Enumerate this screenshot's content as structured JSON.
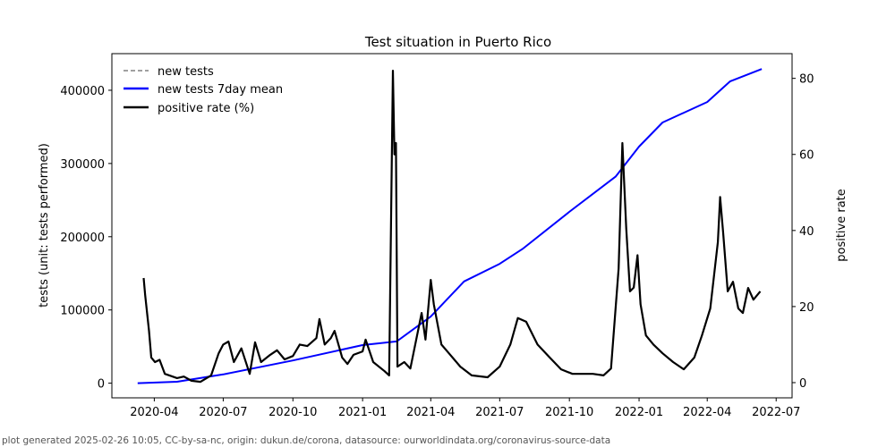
{
  "chart_data": {
    "type": "line",
    "title": "Test situation in Puerto Rico",
    "ylabel": "tests (unit: tests performed)",
    "y2label": "positive rate",
    "ylim": [
      -20000,
      450000
    ],
    "y2lim": [
      -4.0,
      86.5
    ],
    "xlim": [
      "2020-02-05",
      "2022-07-22"
    ],
    "yticks": [
      0,
      100000,
      200000,
      300000,
      400000
    ],
    "y2ticks": [
      0,
      20,
      40,
      60,
      80
    ],
    "xticks": [
      "2020-04",
      "2020-07",
      "2020-10",
      "2021-01",
      "2021-04",
      "2021-07",
      "2021-10",
      "2022-01",
      "2022-04",
      "2022-07"
    ],
    "legend": {
      "placement": "top-left",
      "entries": [
        "new tests",
        "new tests 7day mean",
        "positive rate (%)"
      ]
    },
    "colors": {
      "new_tests": "#808080",
      "mean": "#0000ff",
      "positive": "#000000"
    },
    "series": [
      {
        "name": "new tests 7day mean",
        "axis": "left",
        "points": [
          [
            "2020-03-10",
            0
          ],
          [
            "2020-05-01",
            2000
          ],
          [
            "2020-07-01",
            12000
          ],
          [
            "2020-10-01",
            31000
          ],
          [
            "2021-01-01",
            52000
          ],
          [
            "2021-02-15",
            57000
          ],
          [
            "2021-04-01",
            91000
          ],
          [
            "2021-05-15",
            139000
          ],
          [
            "2021-07-01",
            163000
          ],
          [
            "2021-08-01",
            184000
          ],
          [
            "2021-10-01",
            234000
          ],
          [
            "2021-12-01",
            282000
          ],
          [
            "2022-01-01",
            323000
          ],
          [
            "2022-02-01",
            356000
          ],
          [
            "2022-04-01",
            384000
          ],
          [
            "2022-05-01",
            412000
          ],
          [
            "2022-06-12",
            429000
          ]
        ]
      },
      {
        "name": "positive rate (%)",
        "axis": "right",
        "points": [
          [
            "2020-03-18",
            27.5
          ],
          [
            "2020-03-20",
            23
          ],
          [
            "2020-03-25",
            13.6
          ],
          [
            "2020-03-28",
            6.6
          ],
          [
            "2020-04-02",
            5.4
          ],
          [
            "2020-04-08",
            6
          ],
          [
            "2020-04-15",
            2.3
          ],
          [
            "2020-05-01",
            1.2
          ],
          [
            "2020-05-10",
            1.6
          ],
          [
            "2020-05-20",
            0.5
          ],
          [
            "2020-06-01",
            0.2
          ],
          [
            "2020-06-15",
            1.9
          ],
          [
            "2020-06-25",
            7.7
          ],
          [
            "2020-07-01",
            10
          ],
          [
            "2020-07-08",
            10.8
          ],
          [
            "2020-07-15",
            5.4
          ],
          [
            "2020-07-25",
            9
          ],
          [
            "2020-08-05",
            2.3
          ],
          [
            "2020-08-12",
            10.6
          ],
          [
            "2020-08-20",
            5.4
          ],
          [
            "2020-09-01",
            7.3
          ],
          [
            "2020-09-10",
            8.5
          ],
          [
            "2020-09-20",
            6.1
          ],
          [
            "2020-10-01",
            7
          ],
          [
            "2020-10-10",
            10
          ],
          [
            "2020-10-20",
            9.6
          ],
          [
            "2020-11-01",
            11.7
          ],
          [
            "2020-11-05",
            16.7
          ],
          [
            "2020-11-12",
            10
          ],
          [
            "2020-11-20",
            11.7
          ],
          [
            "2020-11-25",
            13.6
          ],
          [
            "2020-12-05",
            6.6
          ],
          [
            "2020-12-12",
            4.9
          ],
          [
            "2020-12-20",
            7.3
          ],
          [
            "2021-01-01",
            8.2
          ],
          [
            "2021-01-05",
            11.3
          ],
          [
            "2021-01-15",
            5.4
          ],
          [
            "2021-01-30",
            3
          ],
          [
            "2021-02-05",
            1.9
          ],
          [
            "2021-02-10",
            82
          ],
          [
            "2021-02-12",
            60
          ],
          [
            "2021-02-14",
            63
          ],
          [
            "2021-02-16",
            4.2
          ],
          [
            "2021-02-25",
            5.4
          ],
          [
            "2021-03-05",
            3.7
          ],
          [
            "2021-03-20",
            18.3
          ],
          [
            "2021-03-25",
            11.3
          ],
          [
            "2021-04-01",
            27
          ],
          [
            "2021-04-05",
            20.6
          ],
          [
            "2021-04-15",
            10
          ],
          [
            "2021-04-25",
            7.7
          ],
          [
            "2021-05-10",
            4.2
          ],
          [
            "2021-05-25",
            1.9
          ],
          [
            "2021-06-15",
            1.4
          ],
          [
            "2021-07-01",
            4.2
          ],
          [
            "2021-07-15",
            10
          ],
          [
            "2021-07-25",
            17
          ],
          [
            "2021-08-05",
            16
          ],
          [
            "2021-08-20",
            10
          ],
          [
            "2021-09-05",
            6.6
          ],
          [
            "2021-09-20",
            3.5
          ],
          [
            "2021-10-05",
            2.3
          ],
          [
            "2021-11-01",
            2.3
          ],
          [
            "2021-11-15",
            1.9
          ],
          [
            "2021-11-25",
            3.7
          ],
          [
            "2021-12-05",
            30
          ],
          [
            "2021-12-10",
            63
          ],
          [
            "2021-12-15",
            40.6
          ],
          [
            "2021-12-20",
            24
          ],
          [
            "2021-12-25",
            25
          ],
          [
            "2021-12-30",
            33.5
          ],
          [
            "2022-01-03",
            20.6
          ],
          [
            "2022-01-10",
            12.4
          ],
          [
            "2022-01-20",
            10
          ],
          [
            "2022-02-01",
            7.7
          ],
          [
            "2022-02-15",
            5.4
          ],
          [
            "2022-03-01",
            3.5
          ],
          [
            "2022-03-15",
            6.6
          ],
          [
            "2022-03-25",
            12.4
          ],
          [
            "2022-04-05",
            19.5
          ],
          [
            "2022-04-15",
            37
          ],
          [
            "2022-04-18",
            48.8
          ],
          [
            "2022-04-22",
            39.4
          ],
          [
            "2022-04-28",
            24
          ],
          [
            "2022-05-05",
            26.5
          ],
          [
            "2022-05-12",
            19.5
          ],
          [
            "2022-05-18",
            18.3
          ],
          [
            "2022-05-25",
            24.9
          ],
          [
            "2022-06-01",
            21.8
          ],
          [
            "2022-06-10",
            24
          ]
        ]
      }
    ]
  },
  "footer": "plot generated 2025-02-26 10:05, CC-by-sa-nc, origin: dukun.de/corona, datasource: ourworldindata.org/coronavirus-source-data"
}
